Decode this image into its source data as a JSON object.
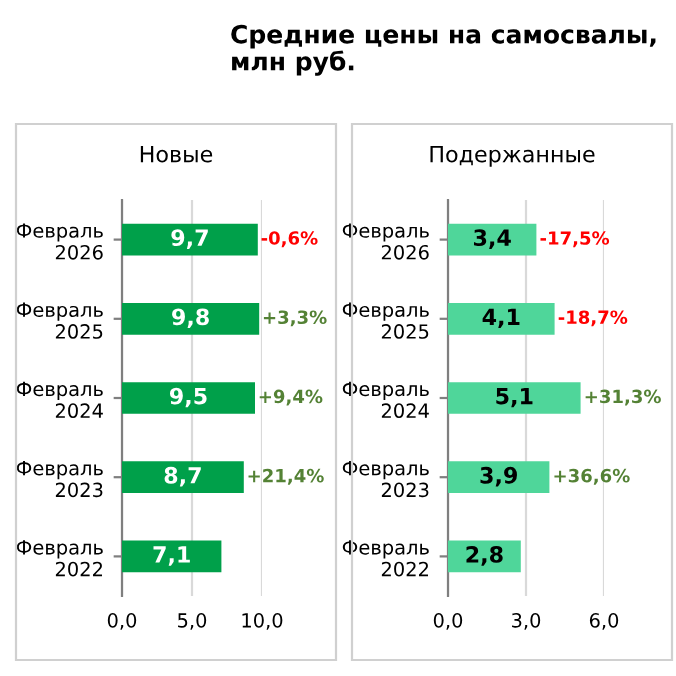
{
  "chart_data": [
    {
      "type": "other",
      "title": "Средние цены на самосвалы,\nмлн руб."
    },
    {
      "type": "bar",
      "orientation": "horizontal",
      "subtitle": "Новые",
      "categories": [
        "Февраль\n2026",
        "Февраль\n2025",
        "Февраль\n2024",
        "Февраль\n2023",
        "Февраль\n2022"
      ],
      "values": [
        9.7,
        9.8,
        9.5,
        8.7,
        7.1
      ],
      "color": "#00a04a",
      "value_labels": [
        "9,7",
        "9,8",
        "9,5",
        "8,7",
        "7,1"
      ],
      "xlim": [
        0,
        10
      ],
      "xticks": [
        {
          "value": 0,
          "label": "0,0"
        },
        {
          "value": 5,
          "label": "5,0"
        },
        {
          "value": 10,
          "label": "10,0"
        }
      ],
      "grid": "x",
      "annotations": [
        {
          "text": "-0,6%",
          "x": 9.7,
          "y": "Февраль\n2026"
        },
        {
          "text": "+3,3%",
          "x": 9.8,
          "y": "Февраль\n2025"
        },
        {
          "text": "+9,4%",
          "x": 9.5,
          "y": "Февраль\n2024"
        },
        {
          "text": "+21,4%",
          "x": 8.7,
          "y": "Февраль\n2023"
        }
      ]
    },
    {
      "type": "bar",
      "orientation": "horizontal",
      "subtitle": "Подержанные",
      "categories": [
        "Февраль\n2026",
        "Февраль\n2025",
        "Февраль\n2024",
        "Февраль\n2023",
        "Февраль\n2022"
      ],
      "values": [
        3.4,
        4.1,
        5.1,
        3.9,
        2.8
      ],
      "color": "#4fd69a",
      "value_labels": [
        "3,4",
        "4,1",
        "5,1",
        "3,9",
        "2,8"
      ],
      "xlim": [
        0,
        6
      ],
      "xticks": [
        {
          "value": 0,
          "label": "0,0"
        },
        {
          "value": 3,
          "label": "3,0"
        },
        {
          "value": 6,
          "label": "6,0"
        }
      ],
      "grid": "x",
      "annotations": [
        {
          "text": "-17,5%",
          "x": 3.4,
          "y": "Февраль\n2026"
        },
        {
          "text": "-18,7%",
          "x": 4.1,
          "y": "Февраль\n2025"
        },
        {
          "text": "+31,3%",
          "x": 5.1,
          "y": "Февраль\n2024"
        },
        {
          "text": "+36,6%",
          "x": 3.9,
          "y": "Февраль\n2023"
        }
      ]
    }
  ]
}
